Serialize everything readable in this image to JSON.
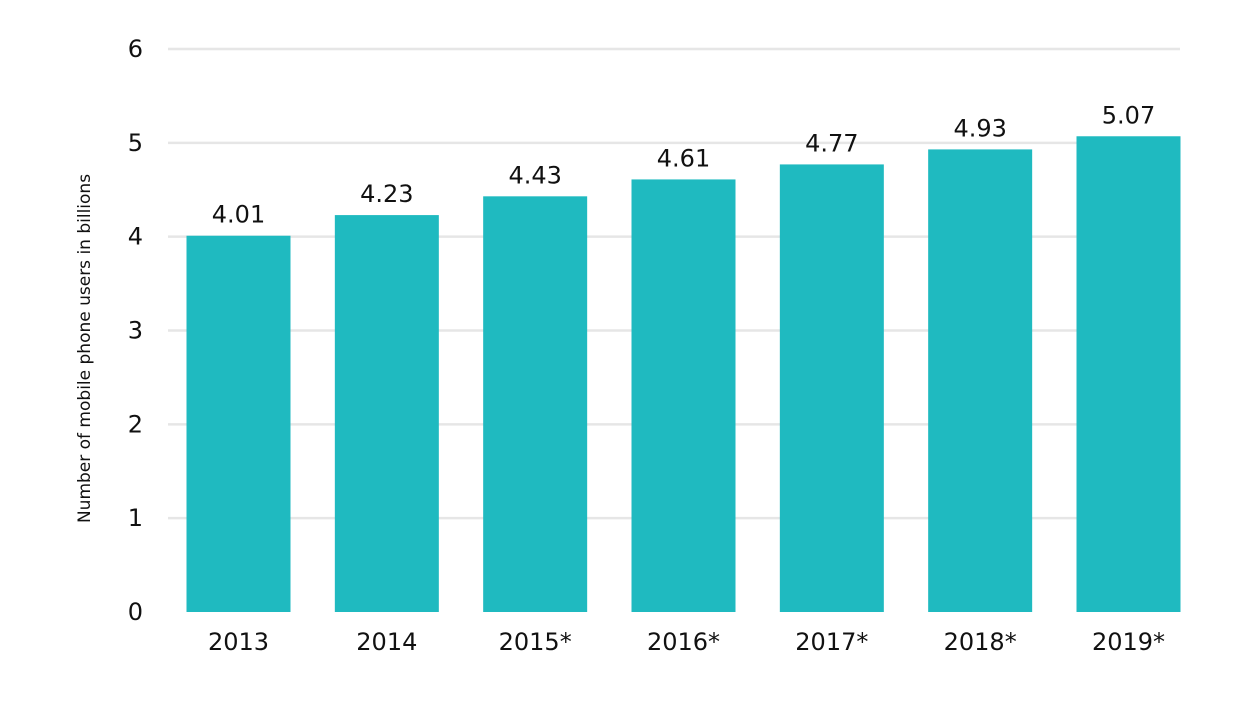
{
  "chart_data": {
    "type": "bar",
    "title": "",
    "xlabel": "",
    "ylabel": "Number of mobile phone users in billions",
    "categories": [
      "2013",
      "2014",
      "2015*",
      "2016*",
      "2017*",
      "2018*",
      "2019*"
    ],
    "values": [
      4.01,
      4.23,
      4.43,
      4.61,
      4.77,
      4.93,
      5.07
    ],
    "value_labels": [
      "4.01",
      "4.23",
      "4.43",
      "4.61",
      "4.77",
      "4.93",
      "5.07"
    ],
    "ylim": [
      0,
      6
    ],
    "yticks": [
      "0",
      "1",
      "2",
      "3",
      "4",
      "5",
      "6"
    ],
    "grid": true,
    "legend": "none",
    "bar_color": "#1fbac0",
    "grid_color": "#e6e6e6"
  }
}
